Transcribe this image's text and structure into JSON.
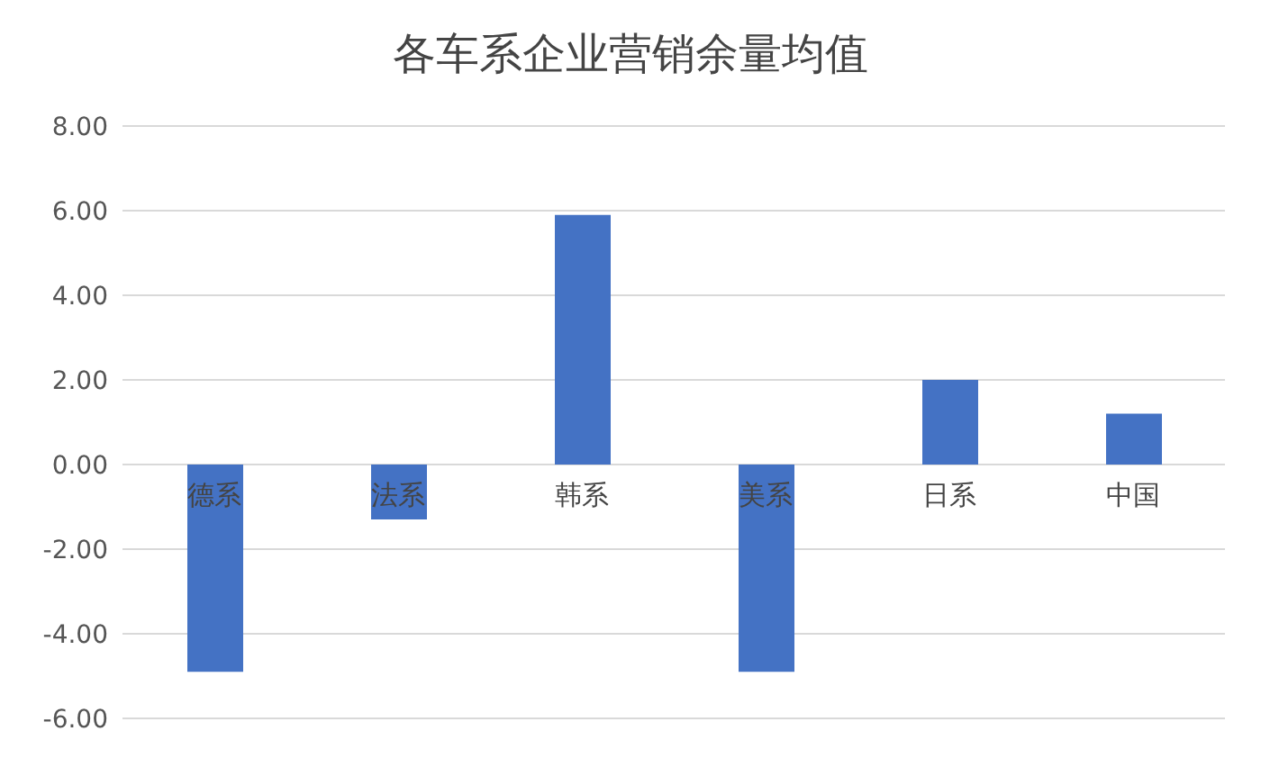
{
  "chart_data": {
    "type": "bar",
    "title": "各车系企业营销余量均值",
    "categories": [
      "德系",
      "法系",
      "韩系",
      "美系",
      "日系",
      "中国"
    ],
    "values": [
      -4.9,
      -1.3,
      5.9,
      -4.9,
      2.0,
      1.2
    ],
    "color": "#4472c4",
    "ylim": [
      -6,
      8
    ],
    "yticks": [
      {
        "value": -6,
        "label": "-6.00"
      },
      {
        "value": -4,
        "label": "-4.00"
      },
      {
        "value": -2,
        "label": "-2.00"
      },
      {
        "value": 0,
        "label": "0.00"
      },
      {
        "value": 2,
        "label": "2.00"
      },
      {
        "value": 4,
        "label": "4.00"
      },
      {
        "value": 6,
        "label": "6.00"
      },
      {
        "value": 8,
        "label": "8.00"
      }
    ],
    "grid": "y"
  }
}
